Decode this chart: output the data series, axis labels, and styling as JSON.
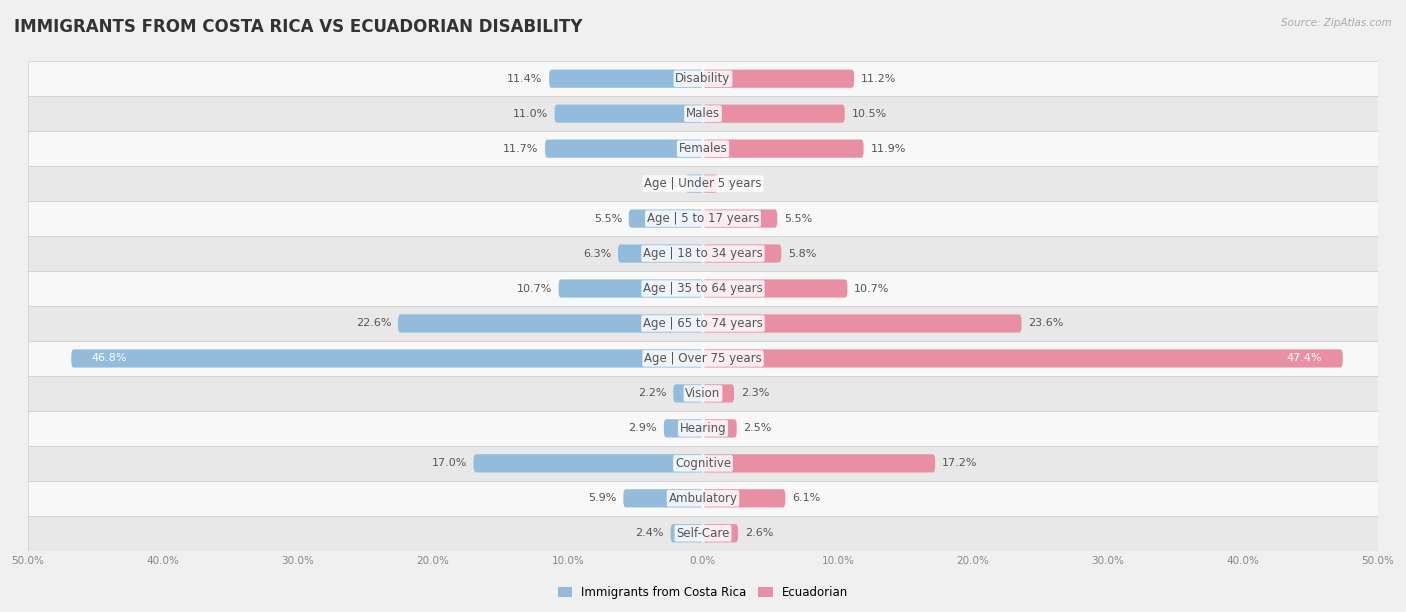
{
  "title": "IMMIGRANTS FROM COSTA RICA VS ECUADORIAN DISABILITY",
  "source": "Source: ZipAtlas.com",
  "categories": [
    "Disability",
    "Males",
    "Females",
    "Age | Under 5 years",
    "Age | 5 to 17 years",
    "Age | 18 to 34 years",
    "Age | 35 to 64 years",
    "Age | 65 to 74 years",
    "Age | Over 75 years",
    "Vision",
    "Hearing",
    "Cognitive",
    "Ambulatory",
    "Self-Care"
  ],
  "left_values": [
    11.4,
    11.0,
    11.7,
    1.3,
    5.5,
    6.3,
    10.7,
    22.6,
    46.8,
    2.2,
    2.9,
    17.0,
    5.9,
    2.4
  ],
  "right_values": [
    11.2,
    10.5,
    11.9,
    1.1,
    5.5,
    5.8,
    10.7,
    23.6,
    47.4,
    2.3,
    2.5,
    17.2,
    6.1,
    2.6
  ],
  "left_color": "#92BBDC",
  "right_color": "#E88FA4",
  "bar_height": 0.52,
  "xlim": 50.0,
  "background_color": "#f0f0f0",
  "row_bg_light": "#f8f8f8",
  "row_bg_dark": "#e8e8e8",
  "legend_labels": [
    "Immigrants from Costa Rica",
    "Ecuadorian"
  ],
  "title_fontsize": 12,
  "label_fontsize": 8.5,
  "value_fontsize": 8
}
